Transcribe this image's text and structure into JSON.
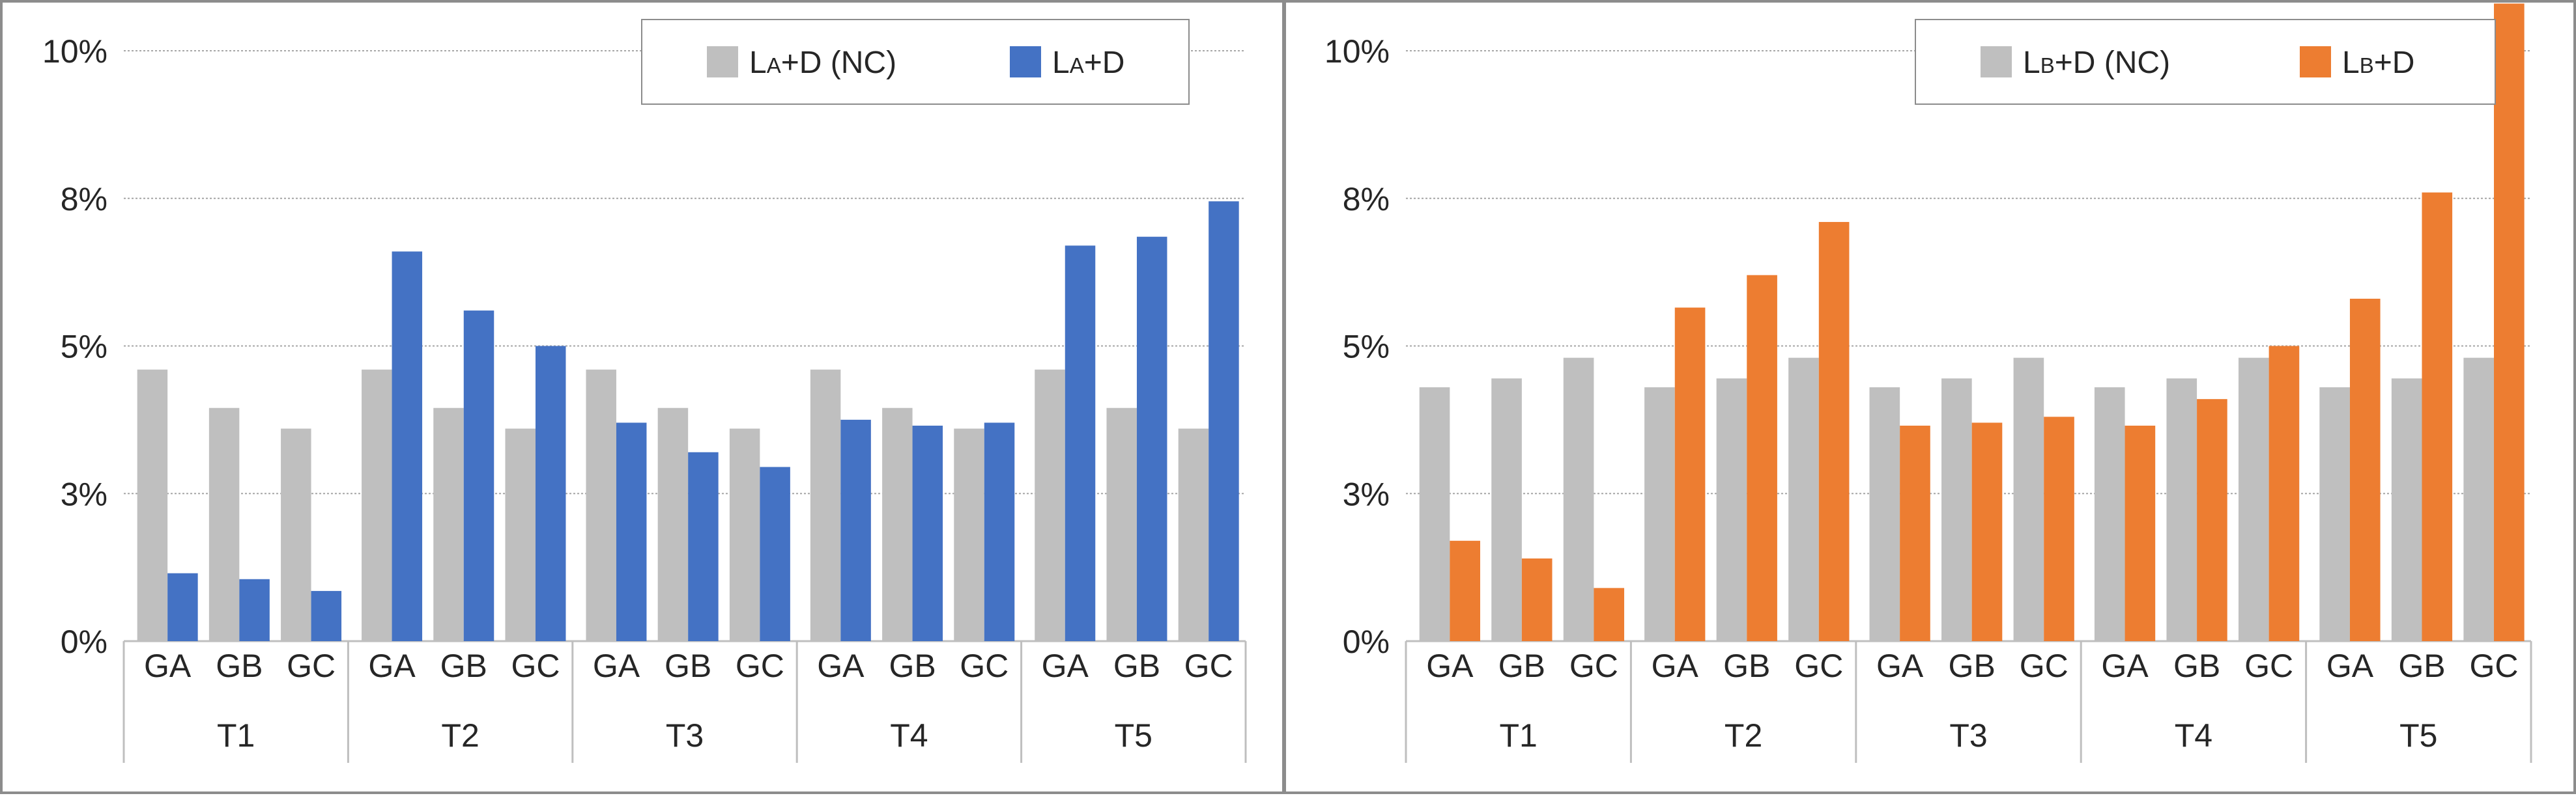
{
  "colors": {
    "nc": "#bfbfbf",
    "left_accent": "#4472c4",
    "right_accent": "#ed7d31",
    "grid": "#a6a6a6",
    "axis": "#bfbfbf",
    "text": "#262626",
    "frame": "#8c8c8c"
  },
  "chart_data": [
    {
      "type": "bar",
      "y_tick_labels": [
        "0%",
        "3%",
        "5%",
        "8%",
        "10%"
      ],
      "ylim": [
        0,
        10
      ],
      "legend": {
        "position": "top-right",
        "nc_label": "LA+D (NC)",
        "main_label": "LA+D"
      },
      "groups": [
        "T1",
        "T2",
        "T3",
        "T4",
        "T5"
      ],
      "subcategories": [
        "GA",
        "GB",
        "GC"
      ],
      "series": [
        {
          "name": "LA+D (NC)",
          "values": [
            [
              4.6,
              3.95,
              3.6
            ],
            [
              4.6,
              3.95,
              3.6
            ],
            [
              4.6,
              3.95,
              3.6
            ],
            [
              4.6,
              3.95,
              3.6
            ],
            [
              4.6,
              3.95,
              3.6
            ]
          ]
        },
        {
          "name": "LA+D",
          "values": [
            [
              1.15,
              1.05,
              0.85
            ],
            [
              6.6,
              5.6,
              5.0
            ],
            [
              3.7,
              3.2,
              2.95
            ],
            [
              3.75,
              3.65,
              3.7
            ],
            [
              6.7,
              6.85,
              7.45
            ]
          ]
        }
      ]
    },
    {
      "type": "bar",
      "y_tick_labels": [
        "0%",
        "3%",
        "5%",
        "8%",
        "10%"
      ],
      "ylim": [
        0,
        10
      ],
      "legend": {
        "position": "top-right",
        "nc_label": "LB+D (NC)",
        "main_label": "LB+D"
      },
      "groups": [
        "T1",
        "T2",
        "T3",
        "T4",
        "T5"
      ],
      "subcategories": [
        "GA",
        "GB",
        "GC"
      ],
      "series": [
        {
          "name": "LB+D (NC)",
          "values": [
            [
              4.3,
              4.45,
              4.8
            ],
            [
              4.3,
              4.45,
              4.8
            ],
            [
              4.3,
              4.45,
              4.8
            ],
            [
              4.3,
              4.45,
              4.8
            ],
            [
              4.3,
              4.45,
              4.8
            ]
          ]
        },
        {
          "name": "LB+D",
          "values": [
            [
              1.7,
              1.4,
              0.9
            ],
            [
              5.65,
              6.2,
              7.1
            ],
            [
              3.65,
              3.7,
              3.8
            ],
            [
              3.65,
              4.1,
              5.0
            ],
            [
              5.8,
              7.6,
              10.8
            ]
          ]
        }
      ]
    }
  ]
}
